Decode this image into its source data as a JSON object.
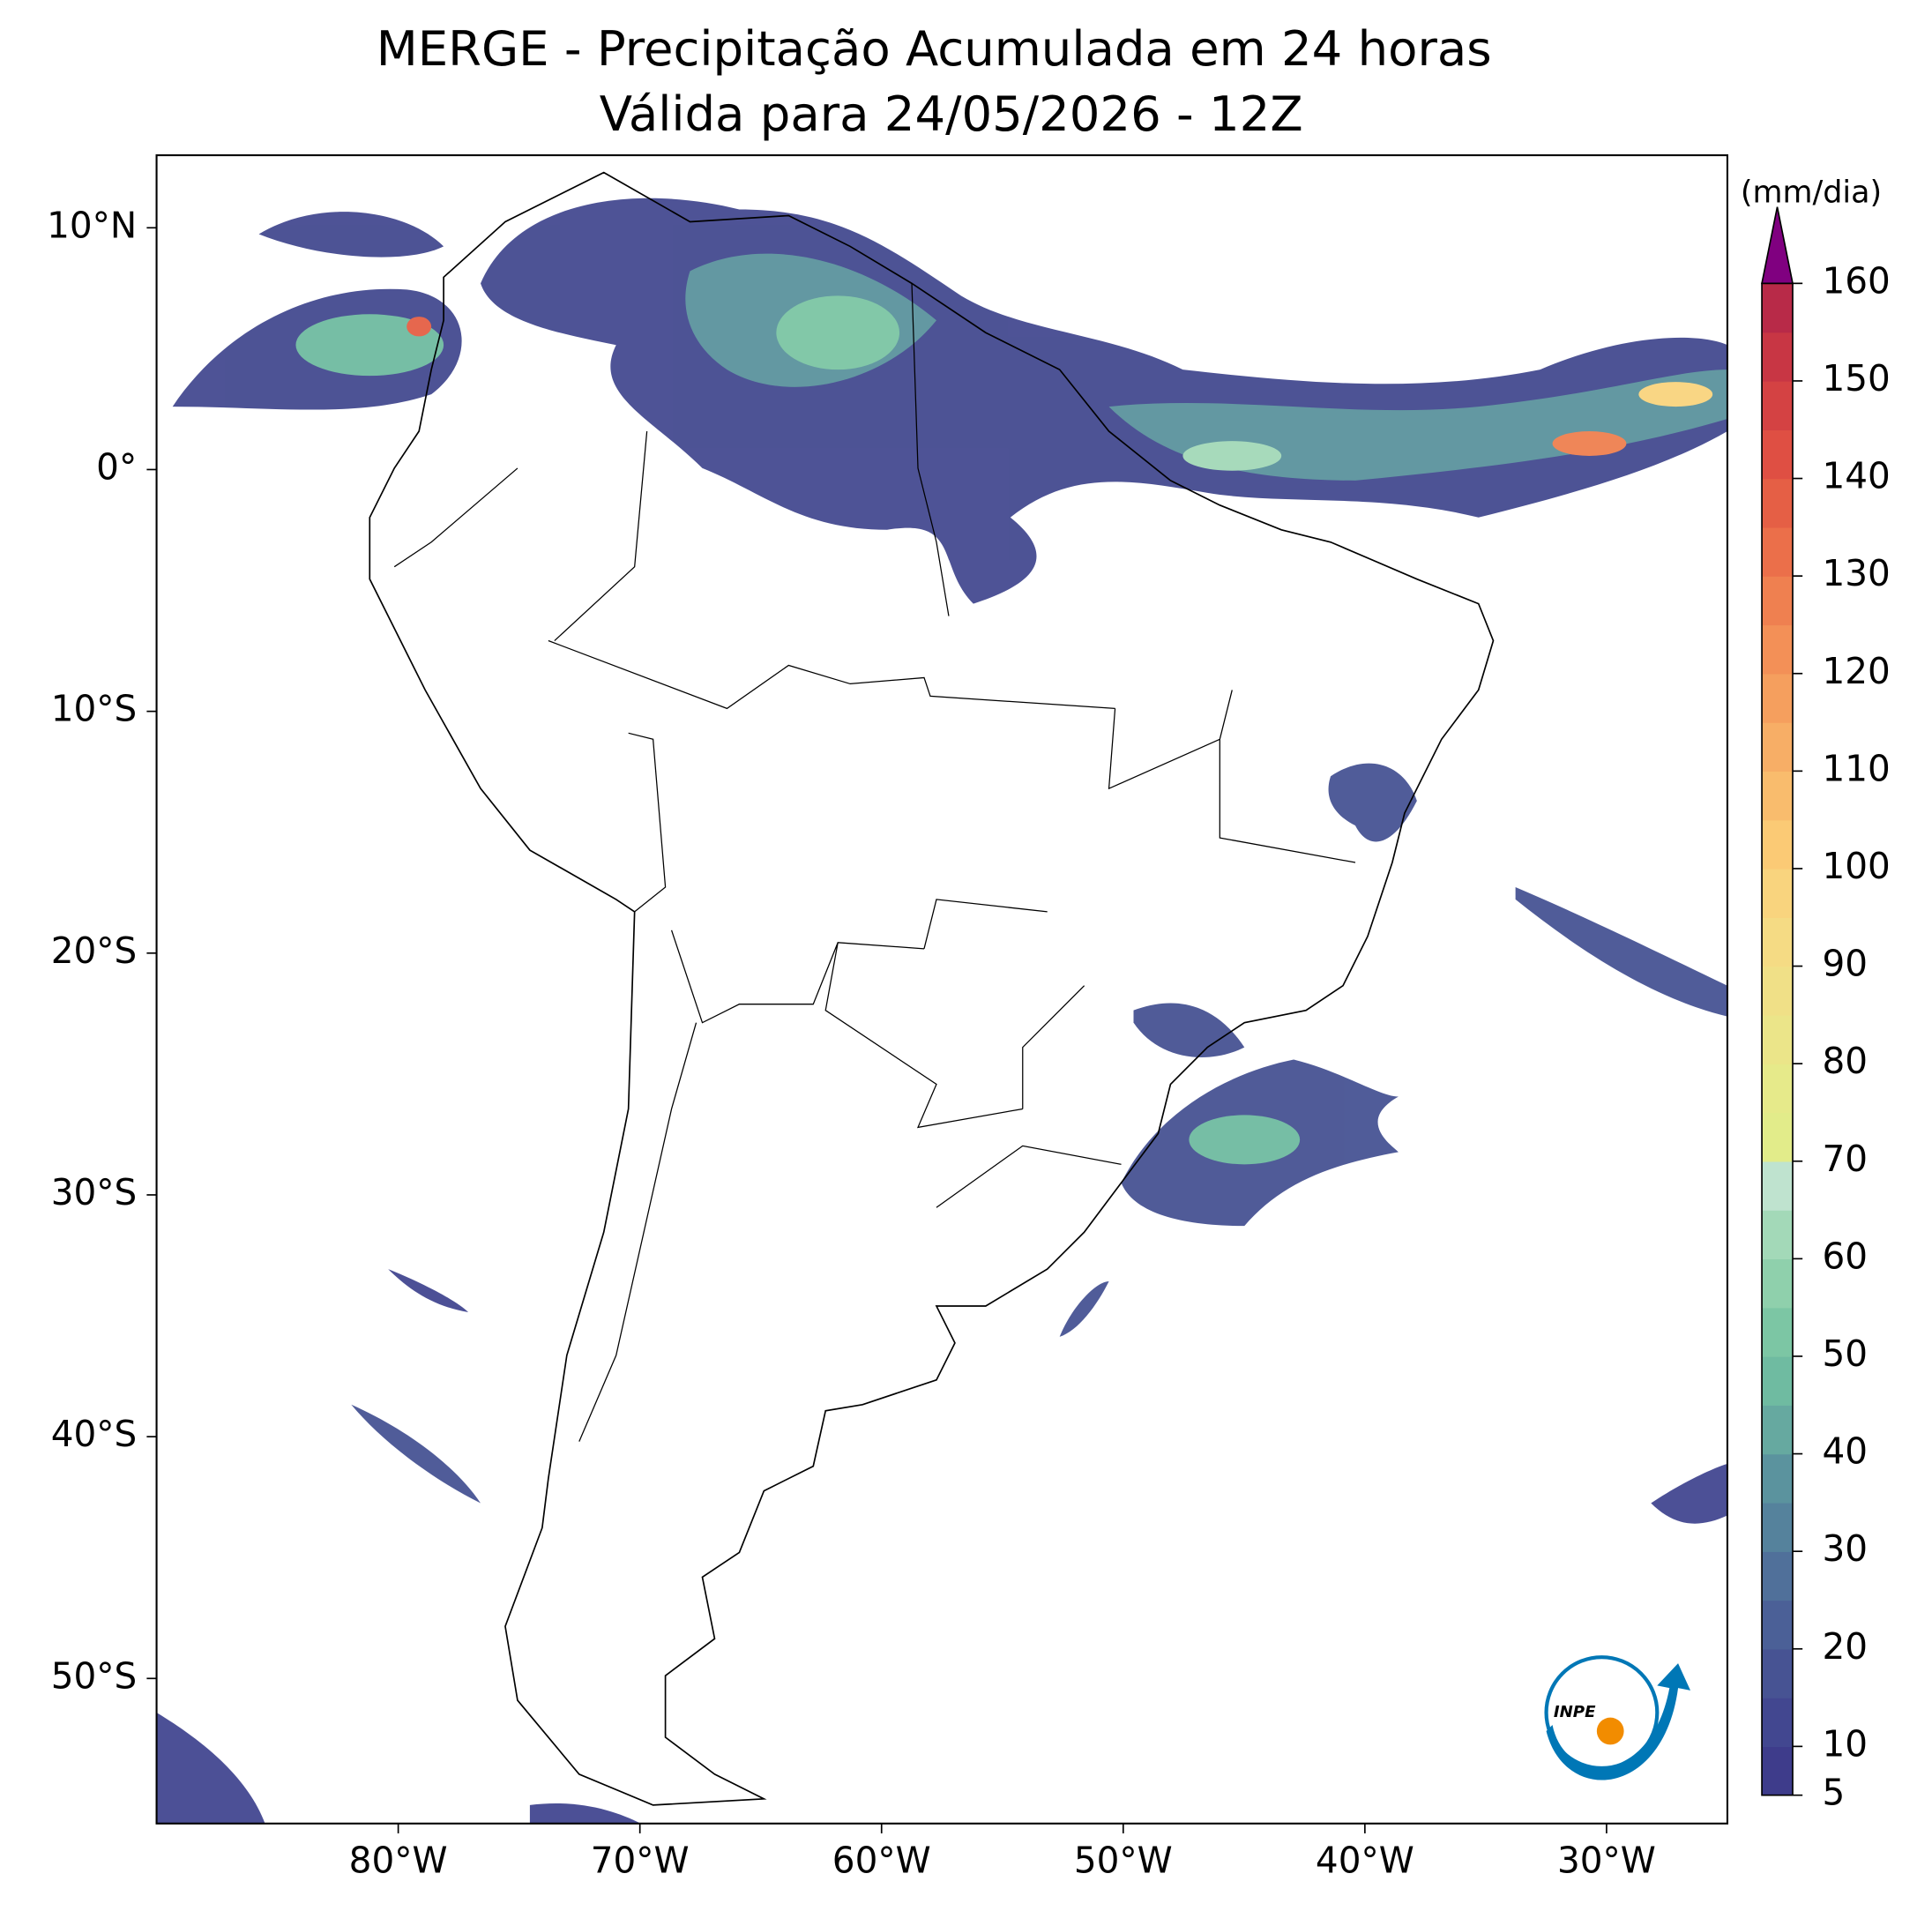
{
  "chart_data": {
    "type": "map",
    "title": "MERGE - Precipitação Acumulada em 24 horas",
    "subtitle": "Válida para 24/05/2026 - 12Z",
    "xlim": [
      -90,
      -25
    ],
    "ylim": [
      -56,
      13
    ],
    "xticks": [
      {
        "value": -80,
        "label": "80°W"
      },
      {
        "value": -70,
        "label": "70°W"
      },
      {
        "value": -60,
        "label": "60°W"
      },
      {
        "value": -50,
        "label": "50°W"
      },
      {
        "value": -40,
        "label": "40°W"
      },
      {
        "value": -30,
        "label": "30°W"
      }
    ],
    "yticks": [
      {
        "value": 10,
        "label": "10°N"
      },
      {
        "value": 0,
        "label": "0°"
      },
      {
        "value": -10,
        "label": "10°S"
      },
      {
        "value": -20,
        "label": "20°S"
      },
      {
        "value": -30,
        "label": "30°S"
      },
      {
        "value": -40,
        "label": "40°S"
      },
      {
        "value": -50,
        "label": "50°S"
      }
    ],
    "colorbar": {
      "label": "(mm/dia)",
      "lim": [
        5,
        160
      ],
      "levels": [
        5,
        10,
        15,
        20,
        25,
        30,
        35,
        40,
        45,
        50,
        55,
        60,
        65,
        70,
        75,
        80,
        85,
        90,
        95,
        100,
        105,
        110,
        115,
        120,
        125,
        130,
        135,
        140,
        145,
        150,
        155,
        160
      ],
      "colors": [
        "#3e3c8b",
        "#424790",
        "#475393",
        "#4b6097",
        "#50709a",
        "#55829c",
        "#5b939e",
        "#66a9a0",
        "#6fbba1",
        "#7cc6a4",
        "#8fd0ac",
        "#a3d9b8",
        "#bfe3cf",
        "#e2ec8a",
        "#e6ea8a",
        "#ebe589",
        "#f0e087",
        "#f5db84",
        "#f9d47e",
        "#fbca75",
        "#f9bc6d",
        "#f7ae66",
        "#f59f5e",
        "#f39057",
        "#ef8050",
        "#eb6f4a",
        "#e55f45",
        "#df4f43",
        "#d44243",
        "#c83644",
        "#b82a48"
      ],
      "extend_color": "#800080",
      "ticks": [
        5,
        10,
        20,
        30,
        40,
        50,
        60,
        70,
        80,
        90,
        100,
        110,
        120,
        130,
        140,
        150,
        160
      ]
    },
    "logo": "INPE"
  }
}
